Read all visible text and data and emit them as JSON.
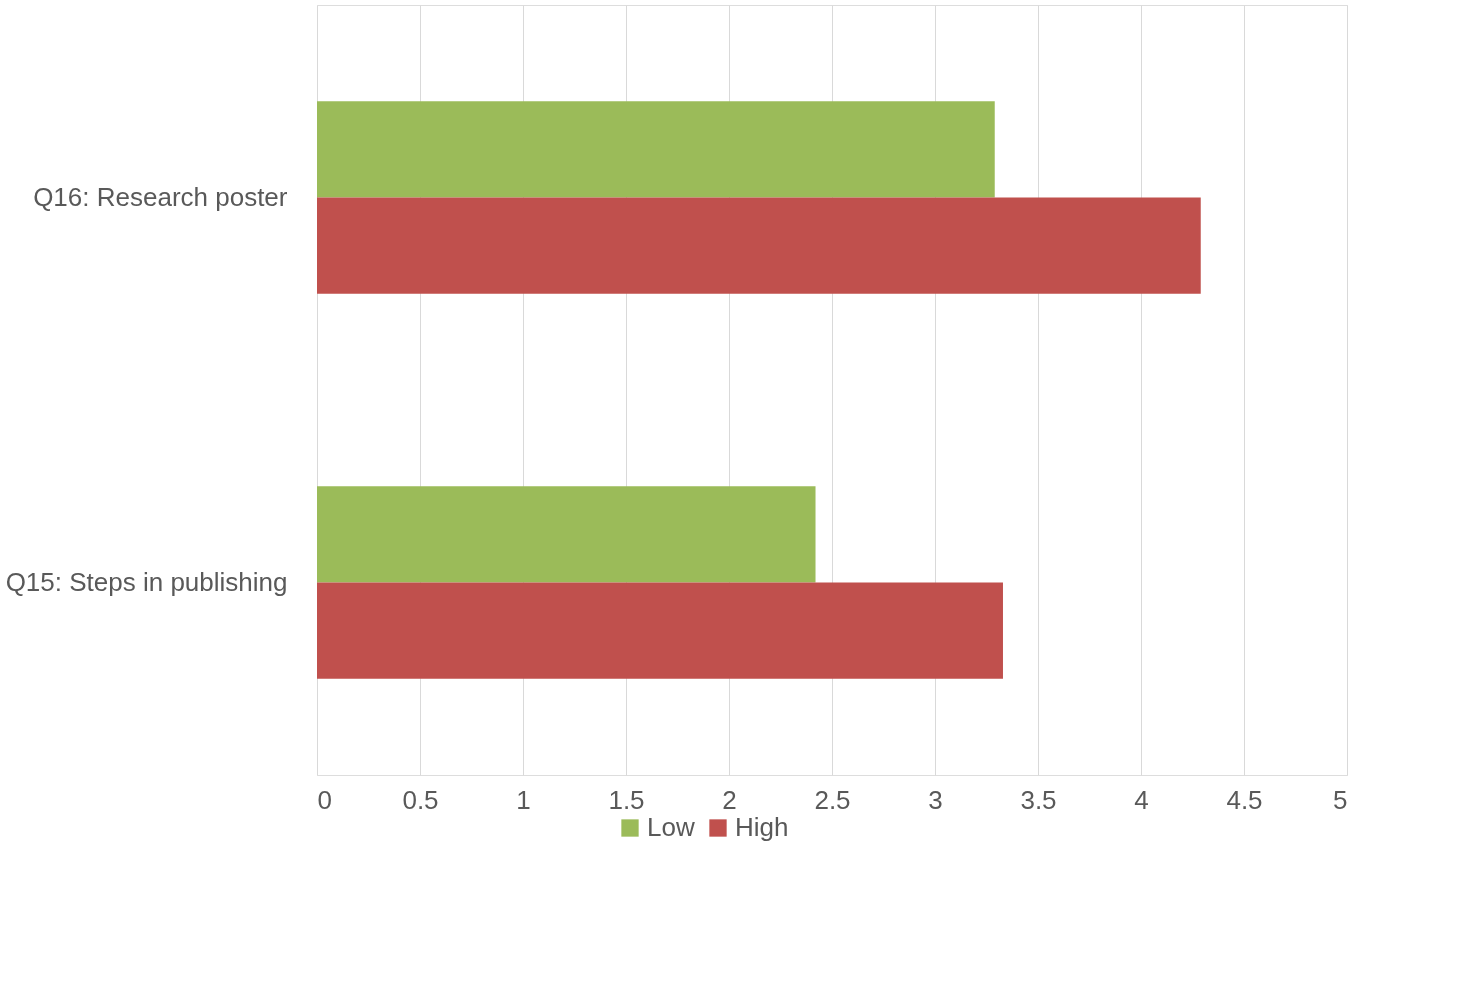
{
  "chart_data": {
    "type": "bar",
    "orientation": "horizontal",
    "categories": [
      "Q16: Research poster",
      "Q15: Steps in publishing"
    ],
    "series": [
      {
        "name": "Low",
        "color": "#9bbb59",
        "values": [
          3.29,
          2.42
        ]
      },
      {
        "name": "High",
        "color": "#c0504d",
        "values": [
          4.29,
          3.33
        ]
      }
    ],
    "xlim": [
      0,
      5
    ],
    "xticks": [
      0,
      0.5,
      1,
      1.5,
      2,
      2.5,
      3,
      3.5,
      4,
      4.5,
      5
    ],
    "grid": "x",
    "legend": "bottom"
  }
}
